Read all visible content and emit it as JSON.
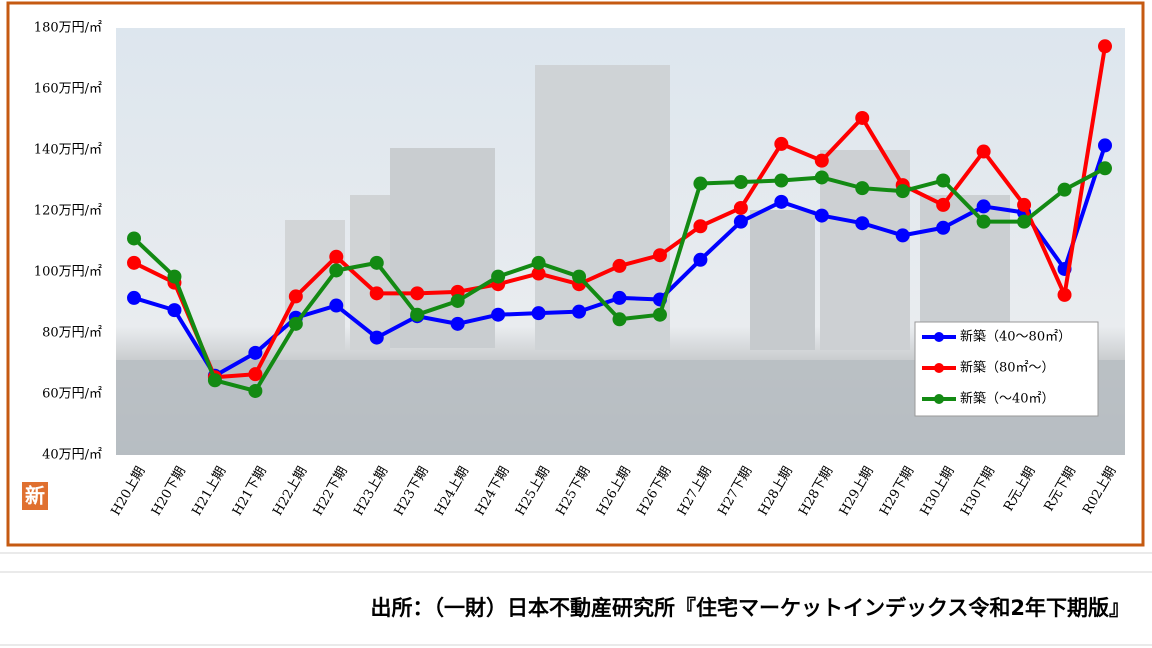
{
  "chart_data": {
    "type": "line",
    "categories": [
      "H20上期",
      "H20下期",
      "H21上期",
      "H21下期",
      "H22上期",
      "H22下期",
      "H23上期",
      "H23下期",
      "H24上期",
      "H24下期",
      "H25上期",
      "H25下期",
      "H26上期",
      "H26下期",
      "H27上期",
      "H27下期",
      "H28上期",
      "H28下期",
      "H29上期",
      "H29下期",
      "H30上期",
      "H30下期",
      "R元上期",
      "R元下期",
      "R02上期"
    ],
    "series": [
      {
        "name": "新築（40～80㎡）",
        "color": "#0000ff",
        "values": [
          91.5,
          87.5,
          66,
          73.5,
          85,
          89,
          78.5,
          85.5,
          83,
          86,
          86.5,
          87,
          91.5,
          91,
          104,
          116.5,
          123,
          118.5,
          116,
          112,
          114.5,
          121.5,
          119.5,
          101,
          141.5
        ]
      },
      {
        "name": "新築（80㎡～）",
        "color": "#ff0000",
        "values": [
          103,
          96.5,
          65.5,
          66.5,
          92,
          105,
          93,
          93,
          93.5,
          96,
          99.5,
          96,
          102,
          105.5,
          115,
          121,
          142,
          136.5,
          150.5,
          128.5,
          122,
          139.5,
          122,
          92.5,
          174
        ]
      },
      {
        "name": "新築（～40㎡）",
        "color": "#138a13",
        "values": [
          111,
          98.5,
          64.5,
          61,
          83,
          100.5,
          103,
          86,
          90.5,
          98.5,
          103,
          98.5,
          84.5,
          86,
          129,
          129.5,
          130,
          131,
          127.5,
          126.5,
          130,
          116.5,
          116.5,
          127,
          134
        ]
      }
    ],
    "ylim": [
      40,
      180
    ],
    "yticks": [
      {
        "value": 40,
        "label": "40万円/㎡"
      },
      {
        "value": 60,
        "label": "60万円/㎡"
      },
      {
        "value": 80,
        "label": "80万円/㎡"
      },
      {
        "value": 100,
        "label": "100万円/㎡"
      },
      {
        "value": 120,
        "label": "120万円/㎡"
      },
      {
        "value": 140,
        "label": "140万円/㎡"
      },
      {
        "value": 160,
        "label": "160万円/㎡"
      },
      {
        "value": 180,
        "label": "180万円/㎡"
      }
    ],
    "legend": "lower right"
  },
  "badge": "新",
  "source": "出所：（一財）日本不動産研究所『住宅マーケットインデックス令和2年下期版』"
}
